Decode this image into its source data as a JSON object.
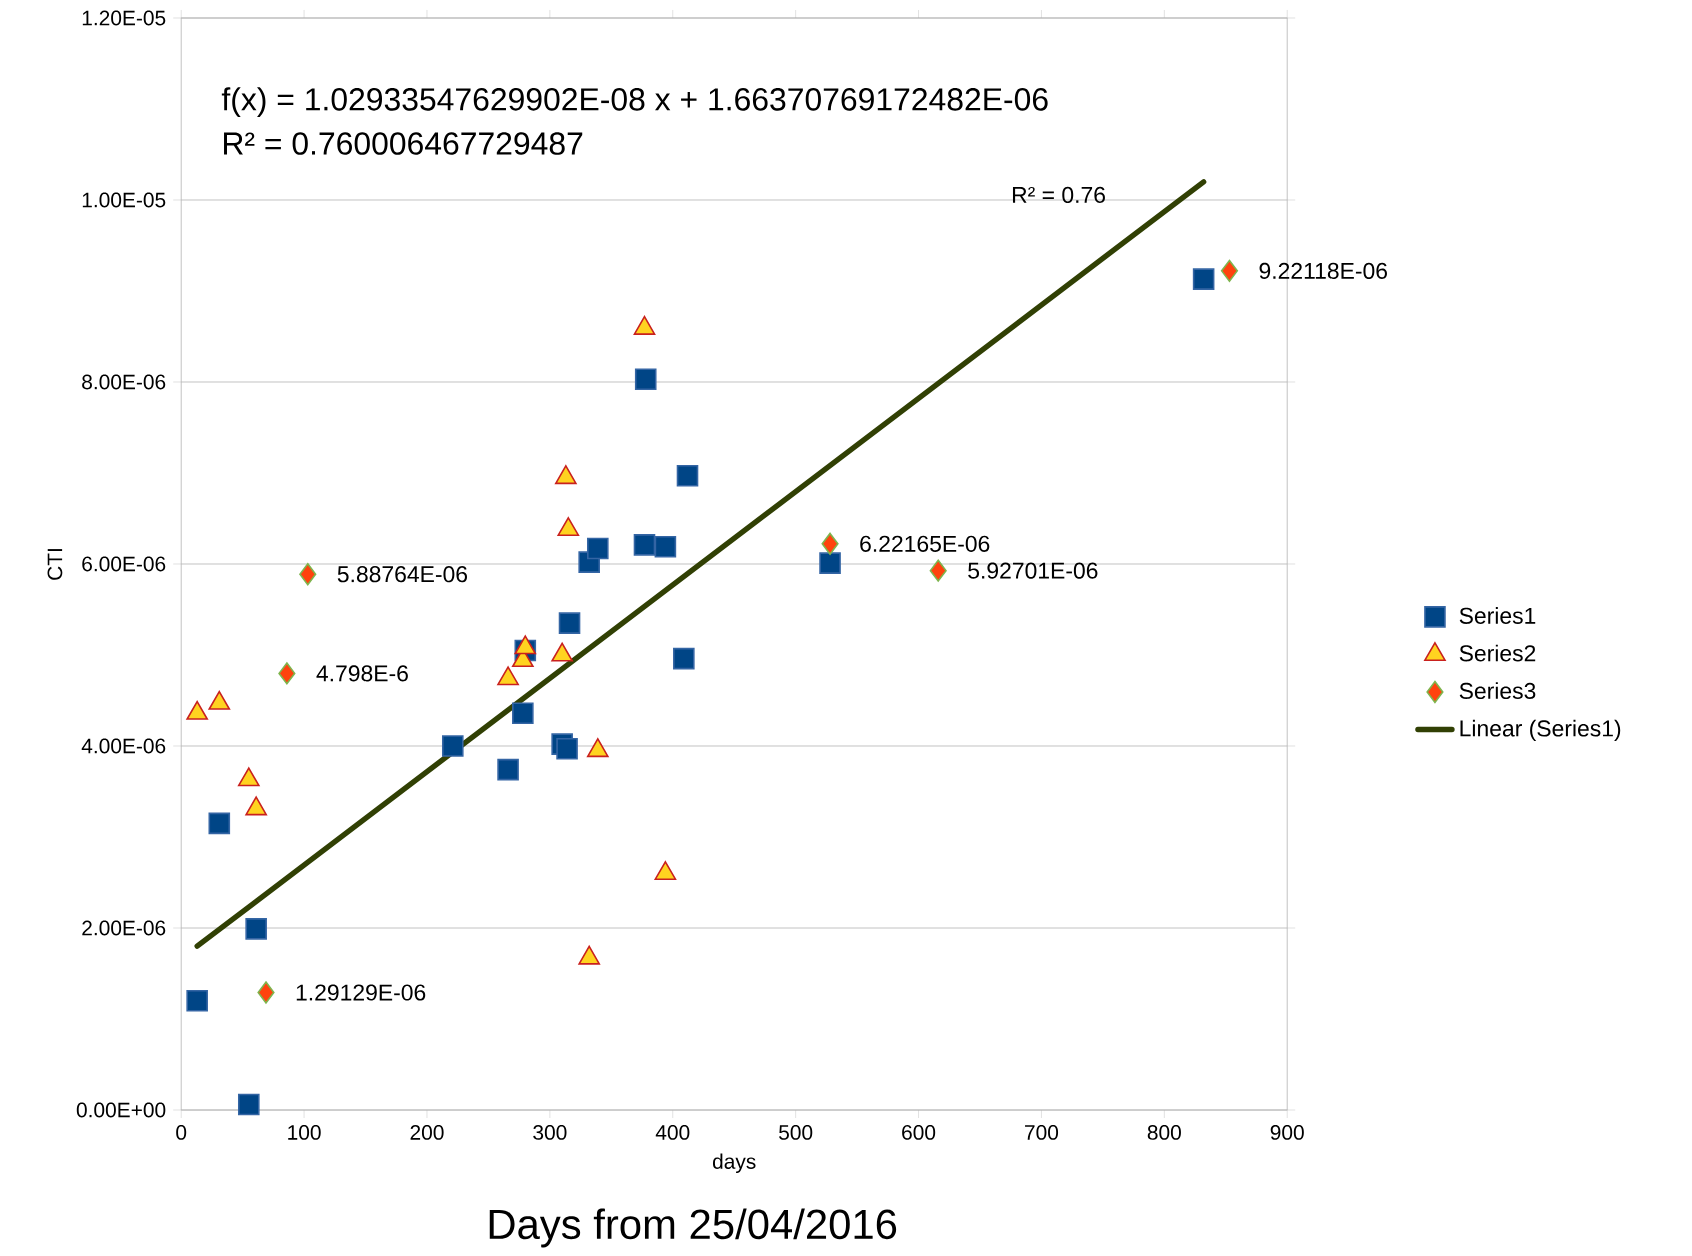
{
  "chart_data": {
    "type": "scatter",
    "xlabel": "days",
    "ylabel": "CTI",
    "xlim": [
      0,
      900
    ],
    "xticks": [
      0,
      100,
      200,
      300,
      400,
      500,
      600,
      700,
      800,
      900
    ],
    "ylim": [
      0,
      1.2e-05
    ],
    "yticks": [
      {
        "value": 0,
        "label": "0.00E+00"
      },
      {
        "value": 2e-06,
        "label": "2.00E-06"
      },
      {
        "value": 4e-06,
        "label": "4.00E-06"
      },
      {
        "value": 6e-06,
        "label": "6.00E-06"
      },
      {
        "value": 8e-06,
        "label": "8.00E-06"
      },
      {
        "value": 1e-05,
        "label": "1.00E-05"
      },
      {
        "value": 1.2e-05,
        "label": "1.20E-05"
      }
    ],
    "grid": "y",
    "legend": "right",
    "series": [
      {
        "name": "Series1",
        "color": "#004586",
        "marker": "square",
        "x": [
          13,
          31,
          55,
          61,
          221,
          266,
          278,
          280,
          310,
          314,
          316,
          332,
          339,
          377,
          378,
          394,
          409,
          412,
          528,
          832
        ],
        "values": [
          1.2e-06,
          3.15e-06,
          6e-08,
          1.99e-06,
          4e-06,
          3.74e-06,
          4.36e-06,
          5.05e-06,
          4.02e-06,
          3.97e-06,
          5.35e-06,
          6.02e-06,
          6.17e-06,
          6.21e-06,
          8.03e-06,
          6.19e-06,
          4.96e-06,
          6.97e-06,
          6.01e-06,
          9.13e-06
        ]
      },
      {
        "name": "Series2",
        "color": "#ffd320",
        "marker": "triangle",
        "x": [
          13,
          31,
          55,
          61,
          266,
          278,
          280,
          310,
          313,
          315,
          332,
          339,
          377,
          394
        ],
        "values": [
          4.36e-06,
          4.47e-06,
          3.63e-06,
          3.31e-06,
          4.74e-06,
          4.94e-06,
          5.08e-06,
          5e-06,
          6.95e-06,
          6.38e-06,
          1.67e-06,
          3.95e-06,
          8.59e-06,
          2.6e-06
        ]
      },
      {
        "name": "Series3",
        "color": "#ff420e",
        "marker": "diamond",
        "x": [
          69,
          86,
          103,
          528,
          616,
          853
        ],
        "values": [
          1.29129e-06,
          4.798e-06,
          5.88764e-06,
          6.22165e-06,
          5.92701e-06,
          9.22118e-06
        ],
        "value_labels": [
          "1.29129E-06",
          "4.798E-6",
          "5.88764E-06",
          "6.22165E-06",
          "5.92701E-06",
          "9.22118E-06"
        ]
      },
      {
        "name": "Linear (Series1)",
        "type": "line",
        "color": "#314004",
        "marker": "none",
        "line_style": "solid",
        "x": [
          13,
          832
        ],
        "values": [
          1.8e-06,
          1.02e-05
        ]
      }
    ],
    "annotations": [
      "f(x) = 1.02933547629902E-08 x + 1.66370769172482E-06",
      "R² = 0.760006467729487",
      "R² = 0.76",
      "Days from 25/04/2016"
    ]
  }
}
